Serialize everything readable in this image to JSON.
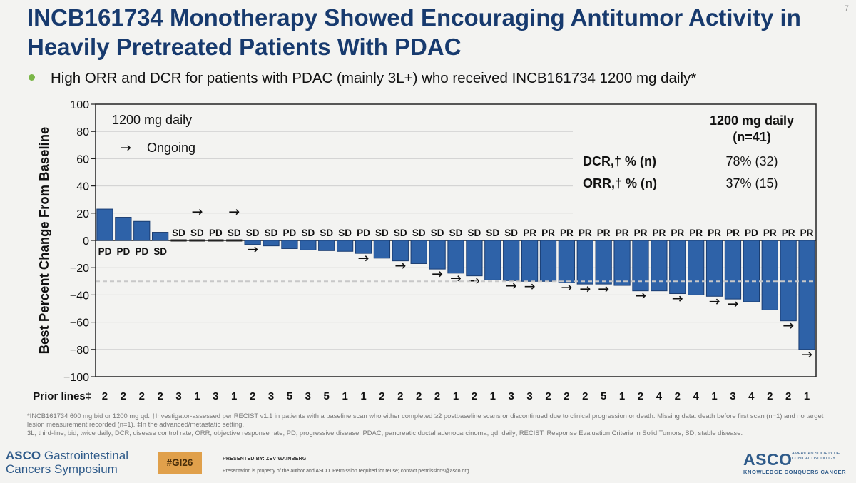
{
  "slide_number": "7",
  "title": "INCB161734 Monotherapy Showed Encouraging Antitumor Activity in Heavily Pretreated Patients With PDAC",
  "bullet": "High ORR and DCR for patients with PDAC (mainly 3L+) who received INCB161734 1200 mg daily*",
  "colors": {
    "title": "#173a6e",
    "bar": "#2e62a8",
    "bar_edge": "#1a3d72",
    "bullet_dot": "#7ab648"
  },
  "chart_data": {
    "type": "bar",
    "title": "",
    "ylabel": "Best Percent Change From Baseline",
    "ylim": [
      -100,
      100
    ],
    "yticks": [
      "100",
      "80",
      "60",
      "40",
      "20",
      "0",
      "−20",
      "−40",
      "−60",
      "−80",
      "−100"
    ],
    "ytick_values": [
      100,
      80,
      60,
      40,
      20,
      0,
      -20,
      -40,
      -60,
      -80,
      -100
    ],
    "reference_line": -30,
    "values": [
      23,
      17,
      14,
      6,
      0,
      0,
      0,
      0,
      -3,
      -4,
      -6,
      -7,
      -7.5,
      -8,
      -9.5,
      -13,
      -15,
      -17,
      -21,
      -24,
      -26,
      -29,
      -29.5,
      -30,
      -30,
      -31,
      -32,
      -32,
      -33,
      -37,
      -37,
      -39,
      -40,
      -41,
      -43,
      -45,
      -51,
      -59,
      -80
    ],
    "responses": [
      "PD",
      "PD",
      "PD",
      "SD",
      "SD",
      "SD",
      "PD",
      "SD",
      "SD",
      "SD",
      "PD",
      "SD",
      "SD",
      "SD",
      "PD",
      "SD",
      "SD",
      "SD",
      "SD",
      "SD",
      "SD",
      "SD",
      "SD",
      "PR",
      "PR",
      "PR",
      "PR",
      "PR",
      "PR",
      "PR",
      "PR",
      "PR",
      "PR",
      "PR",
      "PR",
      "PD",
      "PR",
      "PR",
      "PR"
    ],
    "ongoing": [
      false,
      false,
      false,
      false,
      false,
      true,
      false,
      true,
      true,
      false,
      false,
      false,
      false,
      false,
      true,
      false,
      true,
      false,
      true,
      true,
      true,
      false,
      true,
      true,
      false,
      true,
      true,
      true,
      false,
      true,
      false,
      true,
      false,
      true,
      true,
      false,
      false,
      true,
      true
    ],
    "prior_lines_label": "Prior lines‡",
    "prior_lines": [
      "2",
      "2",
      "2",
      "2",
      "3",
      "1",
      "3",
      "1",
      "2",
      "3",
      "5",
      "3",
      "5",
      "1",
      "1",
      "2",
      "2",
      "2",
      "2",
      "1",
      "2",
      "1",
      "3",
      "3",
      "2",
      "2",
      "2",
      "5",
      "1",
      "2",
      "4",
      "2",
      "4",
      "1",
      "3",
      "4",
      "2",
      "2",
      "1"
    ],
    "legend": {
      "dose": "1200 mg daily",
      "ongoing": "Ongoing",
      "ongoing_symbol": "→"
    },
    "summary": {
      "header_line1": "1200 mg daily",
      "header_line2": "(n=41)",
      "rows": [
        {
          "label": "DCR,† % (n)",
          "value": "78% (32)"
        },
        {
          "label": "ORR,† % (n)",
          "value": "37% (15)"
        }
      ]
    }
  },
  "footnotes": [
    "*INCB161734 600 mg bid or 1200 mg qd. †Investigator-assessed per RECIST v1.1 in patients with a baseline scan who either completed ≥2 postbaseline scans or discontinued due to clinical progression or death. Missing data: death before first scan (n=1) and no target lesion measurement recorded (n=1). ‡In the advanced/metastatic setting.",
    "3L, third-line; bid, twice daily; DCR, disease control rate; ORR, objective response rate; PD, progressive disease; PDAC, pancreatic ductal adenocarcinoma; qd, daily; RECIST, Response Evaluation Criteria in Solid Tumors; SD, stable disease."
  ],
  "footer": {
    "event_name_line1": "ASCO",
    "event_name_line1b": "Gastrointestinal",
    "event_name_line2": "Cancers Symposium",
    "hashtag": "#GI26",
    "presenter": "PRESENTED BY: ZEV WAINBERG",
    "permission": "Presentation is property of the author and ASCO. Permission required for reuse; contact permissions@asco.org.",
    "asco_logo": "ASCO",
    "asco_full_line1": "AMERICAN SOCIETY OF",
    "asco_full_line2": "CLINICAL ONCOLOGY",
    "asco_tagline": "KNOWLEDGE CONQUERS CANCER"
  }
}
